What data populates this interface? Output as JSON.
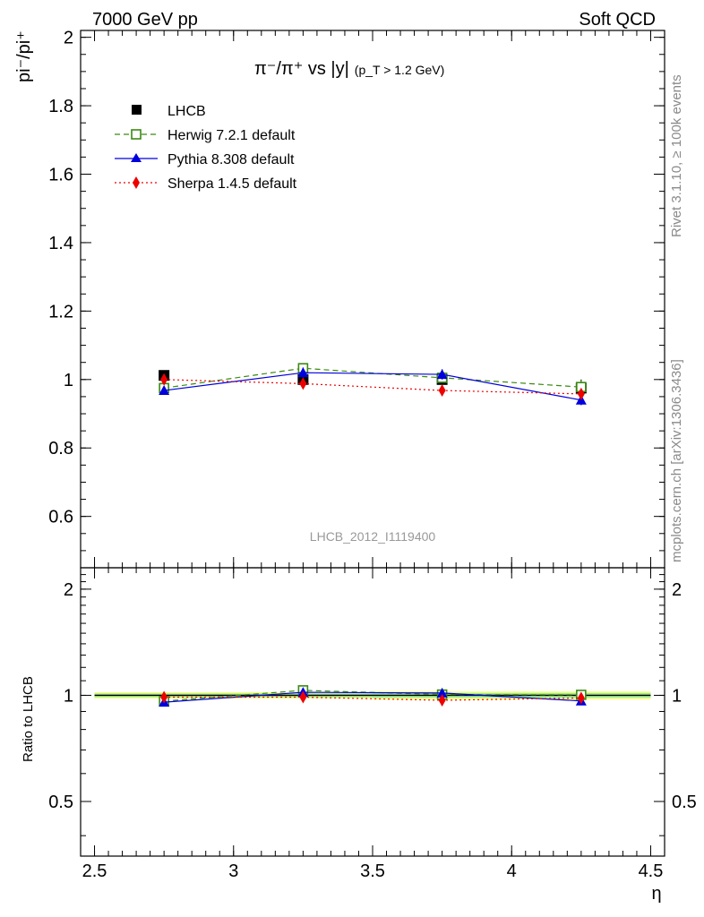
{
  "header": {
    "left": "7000 GeV pp",
    "right": "Soft QCD"
  },
  "side": {
    "rivet": "Rivet 3.1.10, ≥ 100k events",
    "mcplots": "mcplots.cern.ch [arXiv:1306.3436]"
  },
  "chart_data": {
    "type": "line",
    "title_main": "π⁻/π⁺ vs |y|",
    "title_cut": "(p_T > 1.2 GeV)",
    "ylabel": "pi⁻/pi⁺",
    "xlabel": "η",
    "ratio_ylabel": "Ratio to LHCB",
    "watermark": "LHCB_2012_I1119400",
    "xlim": [
      2.45,
      4.55
    ],
    "ylim": [
      0.45,
      2.02
    ],
    "ratio_ylim": [
      0.35,
      2.3
    ],
    "x_ticks": [
      2.5,
      3,
      3.5,
      4,
      4.5
    ],
    "x_tick_labels": [
      "2.5",
      "3",
      "3.5",
      "4",
      "4.5"
    ],
    "y_ticks": [
      0.6,
      0.8,
      1,
      1.2,
      1.4,
      1.6,
      1.8,
      2
    ],
    "y_tick_labels": [
      "0.6",
      "0.8",
      "1",
      "1.2",
      "1.4",
      "1.6",
      "1.8",
      "2"
    ],
    "ratio_ticks": [
      0.5,
      1,
      2
    ],
    "ratio_tick_labels": [
      "0.5",
      "1",
      "2"
    ],
    "x": [
      2.75,
      3.25,
      3.75,
      4.25
    ],
    "data": {
      "name": "LHCB",
      "values": [
        1.012,
        1.0,
        1.0,
        0.975
      ],
      "errors": [
        0.012,
        0.015,
        0.015,
        0.025
      ],
      "color": "#000000"
    },
    "series": [
      {
        "name": "Herwig 7.2.1 default",
        "values": [
          0.975,
          1.033,
          1.005,
          0.978
        ],
        "errors": [
          0.01,
          0.012,
          0.012,
          0.02
        ],
        "ratio": [
          0.963,
          1.033,
          1.005,
          1.003
        ],
        "color": "#3a8a12",
        "marker": "open-square",
        "dash": "6,4"
      },
      {
        "name": "Pythia 8.308 default",
        "values": [
          0.968,
          1.02,
          1.015,
          0.94
        ],
        "errors": [
          0.012,
          0.015,
          0.015,
          0.015
        ],
        "ratio": [
          0.956,
          1.02,
          1.015,
          0.964
        ],
        "color": "#0000dd",
        "marker": "triangle",
        "dash": ""
      },
      {
        "name": "Sherpa 1.4.5 default",
        "values": [
          1.0,
          0.988,
          0.968,
          0.958
        ],
        "errors": [
          0.012,
          0.012,
          0.012,
          0.012
        ],
        "ratio": [
          0.988,
          0.988,
          0.968,
          0.983
        ],
        "color": "#ee0000",
        "marker": "diamond",
        "dash": "2,3"
      }
    ],
    "ratio_band": {
      "x": [
        2.5,
        3.0,
        3.5,
        4.0,
        4.5
      ],
      "inner": [
        0.012,
        0.012,
        0.015,
        0.015,
        0.025
      ],
      "outer": [
        0.02,
        0.02,
        0.025,
        0.025,
        0.04
      ],
      "inner_color": "#9de89d",
      "outer_color": "#f5ff73"
    }
  }
}
